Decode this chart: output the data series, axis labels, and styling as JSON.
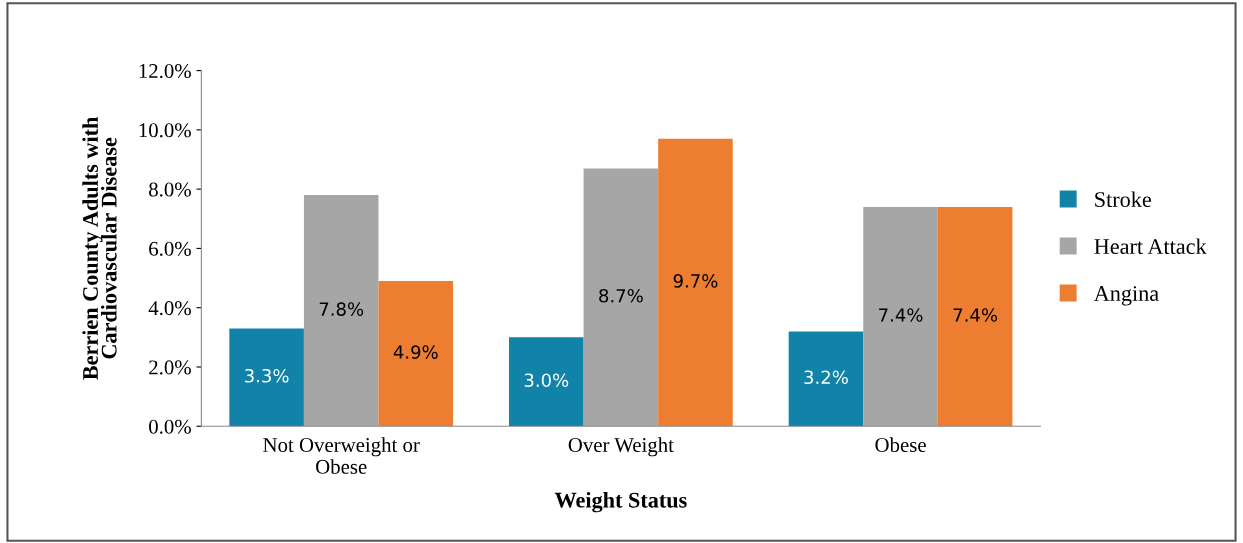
{
  "chart_data": {
    "type": "bar",
    "xlabel": "Weight Status",
    "ylabel": "Berrien County Adults with\nCardiovascular Disease",
    "categories": [
      "Not Overweight or\nObese",
      "Over Weight",
      "Obese"
    ],
    "series": [
      {
        "name": "Stroke",
        "color": "#1183a8",
        "values": [
          3.3,
          3.0,
          3.2
        ],
        "value_labels": [
          "3.3%",
          "3.0%",
          "3.2%"
        ]
      },
      {
        "name": "Heart Attack",
        "color": "#a6a6a6",
        "values": [
          7.8,
          8.7,
          7.4
        ],
        "value_labels": [
          "7.8%",
          "8.7%",
          "7.4%"
        ]
      },
      {
        "name": "Angina",
        "color": "#ed7d31",
        "values": [
          4.9,
          9.7,
          7.4
        ],
        "value_labels": [
          "4.9%",
          "9.7%",
          "7.4%"
        ]
      }
    ],
    "ylim": [
      0,
      12
    ],
    "yticks": [
      {
        "value": 0,
        "label": "0.0%"
      },
      {
        "value": 2,
        "label": "2.0%"
      },
      {
        "value": 4,
        "label": "4.0%"
      },
      {
        "value": 6,
        "label": "6.0%"
      },
      {
        "value": 8,
        "label": "8.0%"
      },
      {
        "value": 10,
        "label": "10.0%"
      },
      {
        "value": 12,
        "label": "12.0%"
      }
    ],
    "grid": false,
    "legend": "right"
  }
}
